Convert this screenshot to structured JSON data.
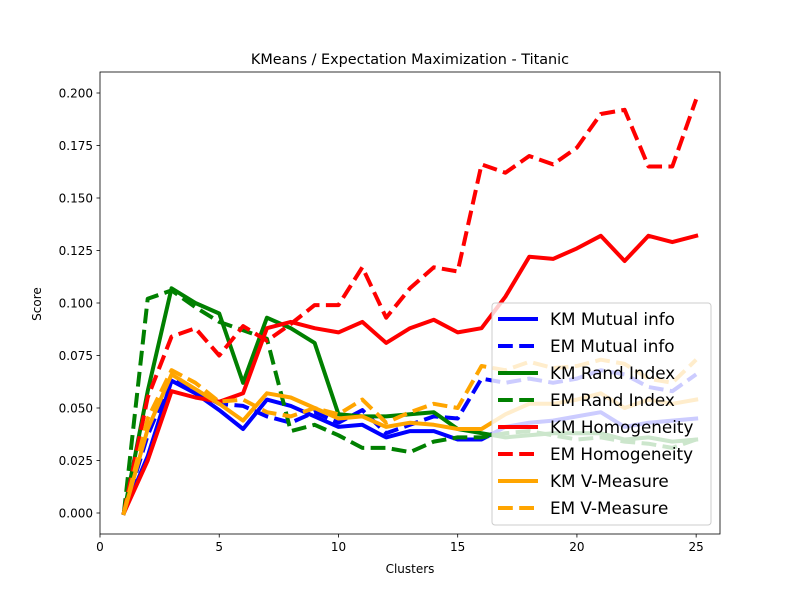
{
  "chart_data": {
    "type": "line",
    "title": "KMeans / Expectation Maximization - Titanic",
    "xlabel": "Clusters",
    "ylabel": "Score",
    "xlim": [
      0,
      26
    ],
    "ylim": [
      -0.01,
      0.21
    ],
    "x_ticks": [
      0,
      5,
      10,
      15,
      20,
      25
    ],
    "x_tick_labels": [
      "0",
      "5",
      "10",
      "15",
      "20",
      "25"
    ],
    "y_ticks": [
      0.0,
      0.025,
      0.05,
      0.075,
      0.1,
      0.125,
      0.15,
      0.175,
      0.2
    ],
    "y_tick_labels": [
      "0.000",
      "0.025",
      "0.050",
      "0.075",
      "0.100",
      "0.125",
      "0.150",
      "0.175",
      "0.200"
    ],
    "grid": false,
    "legend_position": "lower-right",
    "x": [
      1,
      2,
      3,
      4,
      5,
      6,
      7,
      8,
      9,
      10,
      11,
      12,
      13,
      14,
      15,
      16,
      17,
      18,
      19,
      20,
      21,
      22,
      23,
      24,
      25
    ],
    "series": [
      {
        "name": "KM Mutual info",
        "color": "#0000ff",
        "style": "solid",
        "values": [
          0.0,
          0.027,
          0.063,
          0.057,
          0.049,
          0.04,
          0.054,
          0.051,
          0.046,
          0.041,
          0.042,
          0.036,
          0.039,
          0.039,
          0.035,
          0.035,
          0.041,
          0.043,
          0.044,
          0.046,
          0.048,
          0.041,
          0.043,
          0.044,
          0.045
        ]
      },
      {
        "name": "EM Mutual info",
        "color": "#0000ff",
        "style": "dashed",
        "values": [
          0.0,
          0.037,
          0.064,
          0.058,
          0.052,
          0.051,
          0.046,
          0.043,
          0.048,
          0.043,
          0.049,
          0.038,
          0.042,
          0.046,
          0.045,
          0.064,
          0.062,
          0.064,
          0.062,
          0.064,
          0.068,
          0.066,
          0.06,
          0.058,
          0.066
        ]
      },
      {
        "name": "KM Rand Index",
        "color": "#008000",
        "style": "solid",
        "values": [
          0.0,
          0.058,
          0.107,
          0.1,
          0.095,
          0.062,
          0.093,
          0.088,
          0.081,
          0.047,
          0.046,
          0.046,
          0.047,
          0.048,
          0.04,
          0.038,
          0.036,
          0.037,
          0.038,
          0.038,
          0.038,
          0.035,
          0.036,
          0.034,
          0.035
        ]
      },
      {
        "name": "EM Rand Index",
        "color": "#008000",
        "style": "dashed",
        "values": [
          0.0,
          0.102,
          0.106,
          0.098,
          0.091,
          0.087,
          0.083,
          0.039,
          0.042,
          0.037,
          0.031,
          0.031,
          0.029,
          0.034,
          0.036,
          0.036,
          0.038,
          0.039,
          0.037,
          0.035,
          0.036,
          0.034,
          0.033,
          0.031,
          0.035
        ]
      },
      {
        "name": "KM Homogeneity",
        "color": "#ff0000",
        "style": "solid",
        "values": [
          0.0,
          0.025,
          0.058,
          0.055,
          0.053,
          0.057,
          0.088,
          0.091,
          0.088,
          0.086,
          0.091,
          0.081,
          0.088,
          0.092,
          0.086,
          0.088,
          0.103,
          0.122,
          0.121,
          0.126,
          0.132,
          0.12,
          0.132,
          0.129,
          0.132
        ]
      },
      {
        "name": "EM Homogeneity",
        "color": "#ff0000",
        "style": "dashed",
        "values": [
          0.0,
          0.055,
          0.084,
          0.088,
          0.075,
          0.089,
          0.082,
          0.09,
          0.099,
          0.099,
          0.117,
          0.093,
          0.107,
          0.117,
          0.115,
          0.166,
          0.162,
          0.17,
          0.166,
          0.174,
          0.19,
          0.192,
          0.165,
          0.165,
          0.197
        ]
      },
      {
        "name": "KM V-Measure",
        "color": "#ffa500",
        "style": "solid",
        "values": [
          0.0,
          0.04,
          0.066,
          0.059,
          0.052,
          0.044,
          0.057,
          0.055,
          0.05,
          0.045,
          0.046,
          0.041,
          0.043,
          0.042,
          0.04,
          0.04,
          0.047,
          0.052,
          0.052,
          0.054,
          0.057,
          0.05,
          0.054,
          0.052,
          0.054
        ]
      },
      {
        "name": "EM V-Measure",
        "color": "#ffa500",
        "style": "dashed",
        "values": [
          0.0,
          0.045,
          0.068,
          0.062,
          0.053,
          0.054,
          0.048,
          0.046,
          0.05,
          0.047,
          0.054,
          0.043,
          0.048,
          0.052,
          0.05,
          0.07,
          0.068,
          0.072,
          0.069,
          0.07,
          0.073,
          0.071,
          0.064,
          0.062,
          0.073
        ]
      }
    ]
  }
}
